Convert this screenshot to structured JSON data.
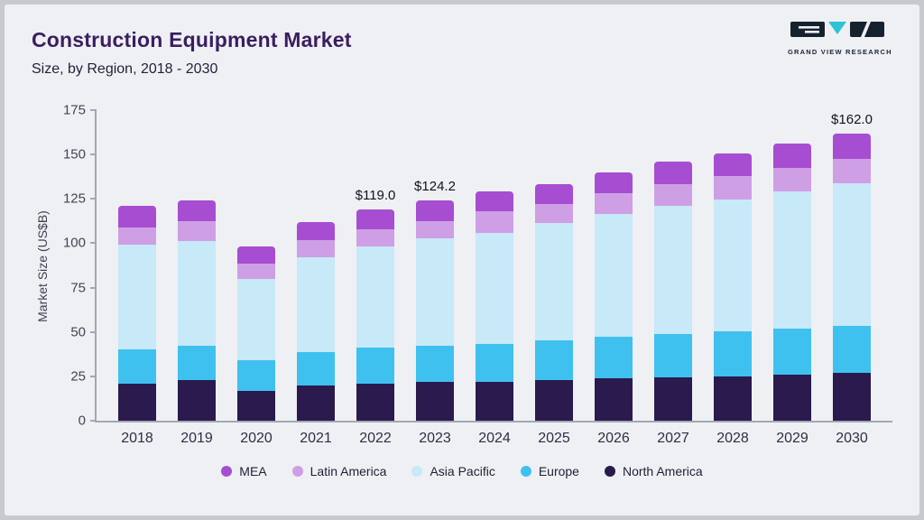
{
  "header": {
    "title": "Construction Equipment Market",
    "subtitle": "Size, by Region, 2018 - 2030"
  },
  "logo": {
    "text": "GRAND VIEW RESEARCH",
    "mark_dark_color": "#16212e",
    "mark_teal_color": "#2fc1d4"
  },
  "chart_data": {
    "type": "bar",
    "stacked": true,
    "title": "Construction Equipment Market Size, by Region, 2018 - 2030",
    "ylabel": "Market Size (US$B)",
    "ylim": [
      0,
      175
    ],
    "yticks": [
      0,
      25,
      50,
      75,
      100,
      125,
      150,
      175
    ],
    "grid": false,
    "legend_position": "bottom",
    "categories": [
      "2018",
      "2019",
      "2020",
      "2021",
      "2022",
      "2023",
      "2024",
      "2025",
      "2026",
      "2027",
      "2028",
      "2029",
      "2030"
    ],
    "series": [
      {
        "name": "North America",
        "color": "#2a1a4d",
        "values": [
          21,
          23,
          17,
          20,
          21,
          22,
          22,
          23,
          24,
          24.5,
          25,
          26,
          27
        ]
      },
      {
        "name": "Europe",
        "color": "#3fc1f0",
        "values": [
          19,
          19,
          17,
          18.5,
          20,
          20,
          21.5,
          22.5,
          23.5,
          24.5,
          25.5,
          26,
          26.5
        ]
      },
      {
        "name": "Asia Pacific",
        "color": "#c7e9f8",
        "values": [
          59,
          59,
          46,
          53.5,
          57,
          61,
          62.5,
          66,
          69,
          72,
          74,
          77,
          80.5
        ]
      },
      {
        "name": "Latin America",
        "color": "#ce9fe5",
        "values": [
          10,
          11.5,
          8.5,
          10,
          10,
          9.2,
          12,
          10.5,
          11.5,
          12.5,
          13.5,
          13.5,
          13.5
        ]
      },
      {
        "name": "MEA",
        "color": "#a64dd2",
        "values": [
          12,
          11.5,
          9.5,
          10,
          11,
          12,
          11,
          11.5,
          12,
          12.5,
          12.5,
          13.5,
          14.5
        ]
      }
    ],
    "legend_order": [
      "MEA",
      "Latin America",
      "Asia Pacific",
      "Europe",
      "North America"
    ],
    "annotations": {
      "2022": "$119.0",
      "2023": "$124.2",
      "2030": "$162.0"
    }
  }
}
